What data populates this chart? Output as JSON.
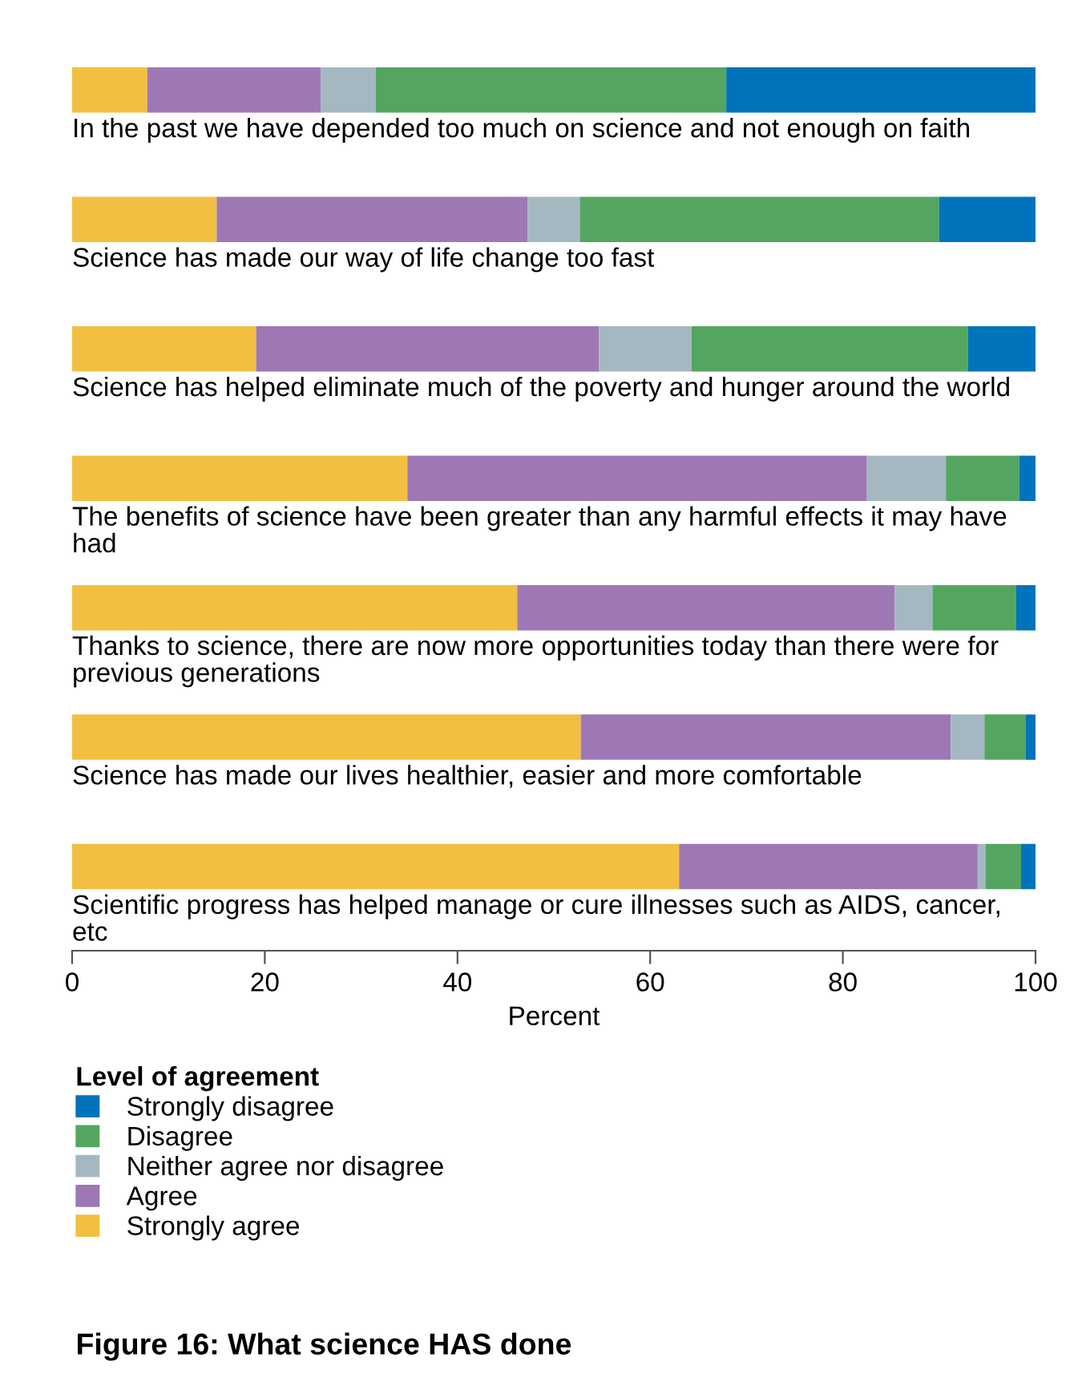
{
  "chart_data": {
    "type": "bar",
    "orientation": "horizontal",
    "stacked": true,
    "title": "Figure 16: What science HAS done",
    "xlabel": "Percent",
    "legend_title": "Level of agreement",
    "legend": "bottom",
    "grid": false,
    "tick_labels": "x",
    "categories": [
      "In the past we have depended too much on science and not enough on faith",
      "Science has made our way of life change too fast",
      "Science has helped eliminate much of the poverty and hunger around the world",
      "The benefits of science have been greater than any harmful effects it may have had",
      "Thanks to science, there are now more opportunities today than there were for previous generations",
      "Science has made our lives healthier, easier and more comfortable",
      "Scientific progress has helped manage or cure illnesses such as AIDS, cancer, etc"
    ],
    "xlim": [
      0,
      100
    ],
    "xticks": [
      0,
      20,
      40,
      60,
      80,
      100
    ],
    "series": [
      {
        "name": "Strongly agree",
        "color": "#f2bf40",
        "values": [
          7.8,
          15.0,
          19.1,
          34.8,
          46.2,
          52.8,
          63.0
        ]
      },
      {
        "name": "Agree",
        "color": "#9e78b4",
        "values": [
          18.0,
          32.3,
          35.6,
          47.7,
          39.2,
          38.4,
          31.0
        ]
      },
      {
        "name": "Neither agree nor disagree",
        "color": "#a5b8c2",
        "values": [
          5.7,
          5.4,
          9.6,
          8.2,
          3.9,
          3.5,
          0.8
        ]
      },
      {
        "name": "Disagree",
        "color": "#54a560",
        "values": [
          36.4,
          37.3,
          28.7,
          7.6,
          8.7,
          4.3,
          3.7
        ]
      },
      {
        "name": "Strongly disagree",
        "color": "#0073bb",
        "values": [
          32.1,
          10.0,
          7.0,
          1.7,
          2.0,
          1.0,
          1.5
        ]
      }
    ]
  }
}
